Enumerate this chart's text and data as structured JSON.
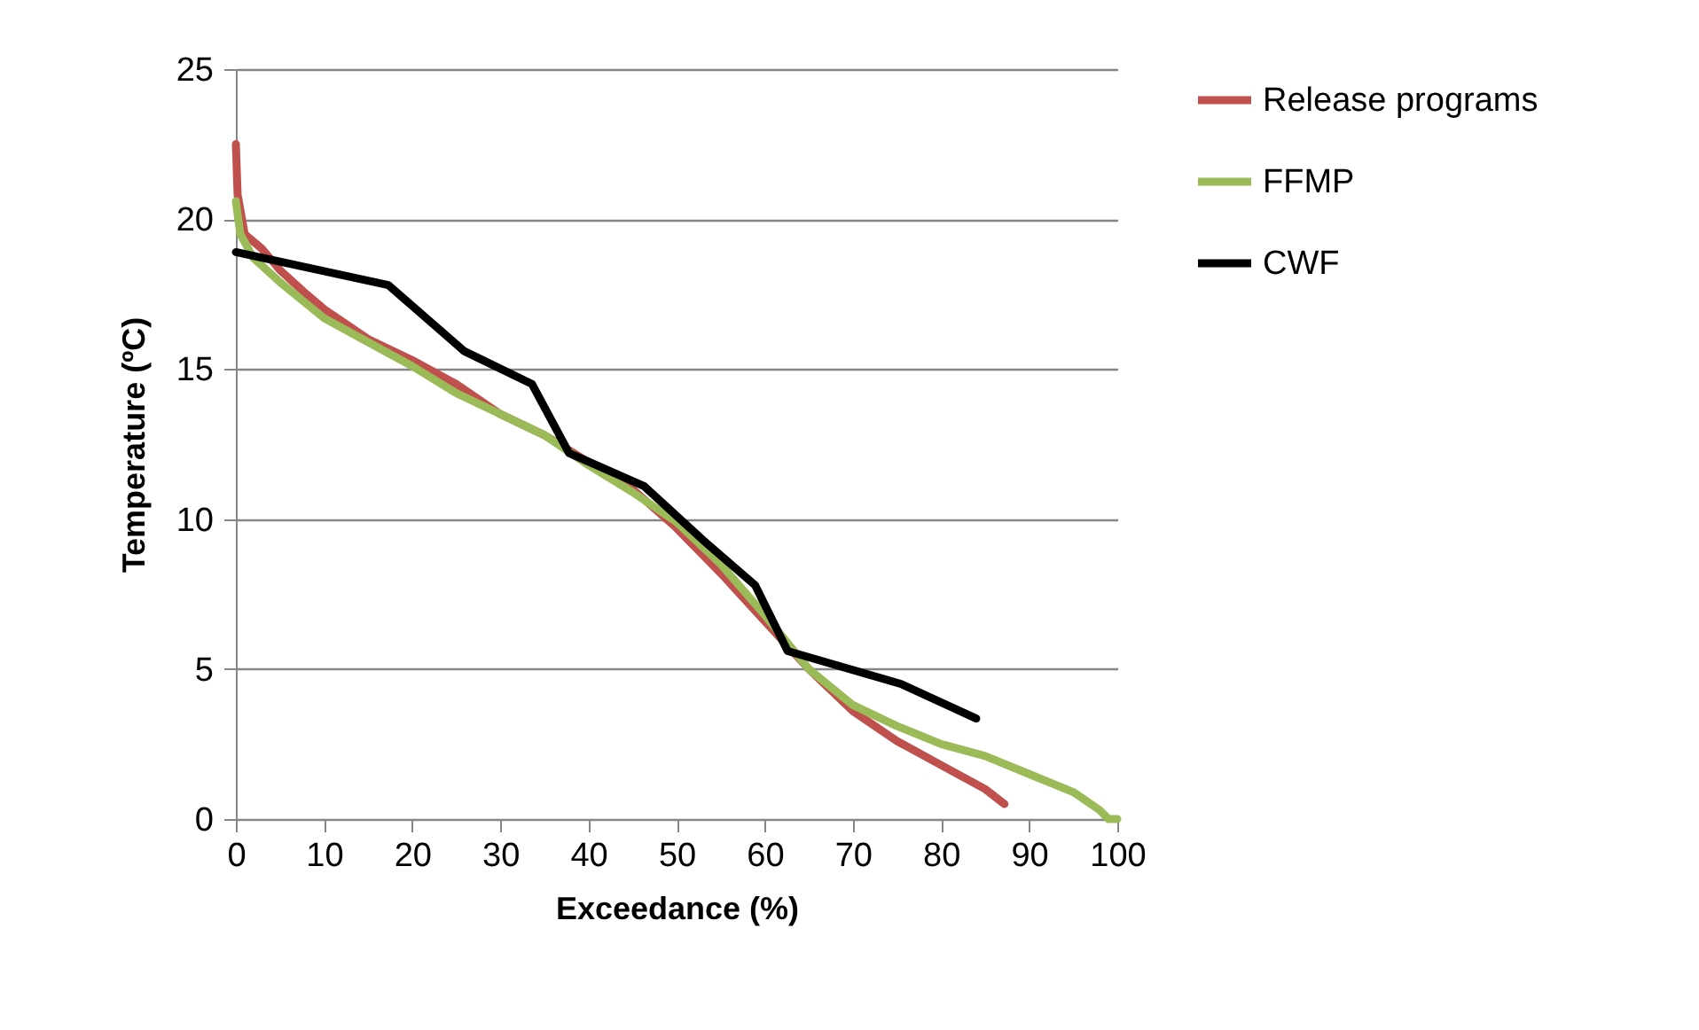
{
  "chart_data": {
    "type": "line",
    "xlabel": "Exceedance (%)",
    "ylabel": "Temperature (ºC)",
    "xlim": [
      0,
      100
    ],
    "xticks": [
      0,
      10,
      20,
      30,
      40,
      50,
      60,
      70,
      80,
      90,
      100
    ],
    "ylim": [
      0,
      25
    ],
    "yticks": [
      0,
      5,
      10,
      15,
      20,
      25
    ],
    "grid": "y",
    "legend": "right",
    "marker": "none",
    "line_style": "solid",
    "series": [
      {
        "name": "Release programs",
        "color": "#c0504d",
        "x": [
          0,
          0.2,
          1,
          3,
          5,
          8,
          10,
          15,
          20,
          25,
          30,
          35,
          40,
          45,
          50,
          55,
          60,
          65,
          70,
          75,
          80,
          85,
          87.2
        ],
        "values": [
          22.5,
          20.8,
          19.5,
          19,
          18.3,
          17.5,
          17,
          16,
          15.3,
          14.5,
          13.5,
          12.8,
          11.9,
          11,
          9.7,
          8.2,
          6.6,
          5,
          3.6,
          2.6,
          1.8,
          1,
          0.5
        ]
      },
      {
        "name": "FFMP",
        "color": "#9bbb59",
        "x": [
          0,
          0.5,
          2,
          5,
          10,
          15,
          20,
          25,
          30,
          35,
          40,
          45,
          50,
          55,
          60,
          65,
          70,
          75,
          80,
          85,
          90,
          95,
          98,
          99,
          100
        ],
        "values": [
          20.6,
          19.5,
          18.7,
          17.9,
          16.7,
          15.9,
          15.1,
          14.2,
          13.5,
          12.8,
          11.8,
          10.9,
          9.9,
          8.5,
          6.8,
          5,
          3.8,
          3.1,
          2.5,
          2.1,
          1.5,
          0.9,
          0.3,
          0,
          0
        ]
      },
      {
        "name": "CWF",
        "color": "#000000",
        "x": [
          0,
          17.3,
          25.9,
          33.6,
          37.8,
          46.3,
          53,
          58.9,
          62.6,
          75.5,
          84
        ],
        "values": [
          18.9,
          17.8,
          15.6,
          14.5,
          12.2,
          11.1,
          9.3,
          7.8,
          5.6,
          4.5,
          3.35
        ]
      }
    ]
  }
}
